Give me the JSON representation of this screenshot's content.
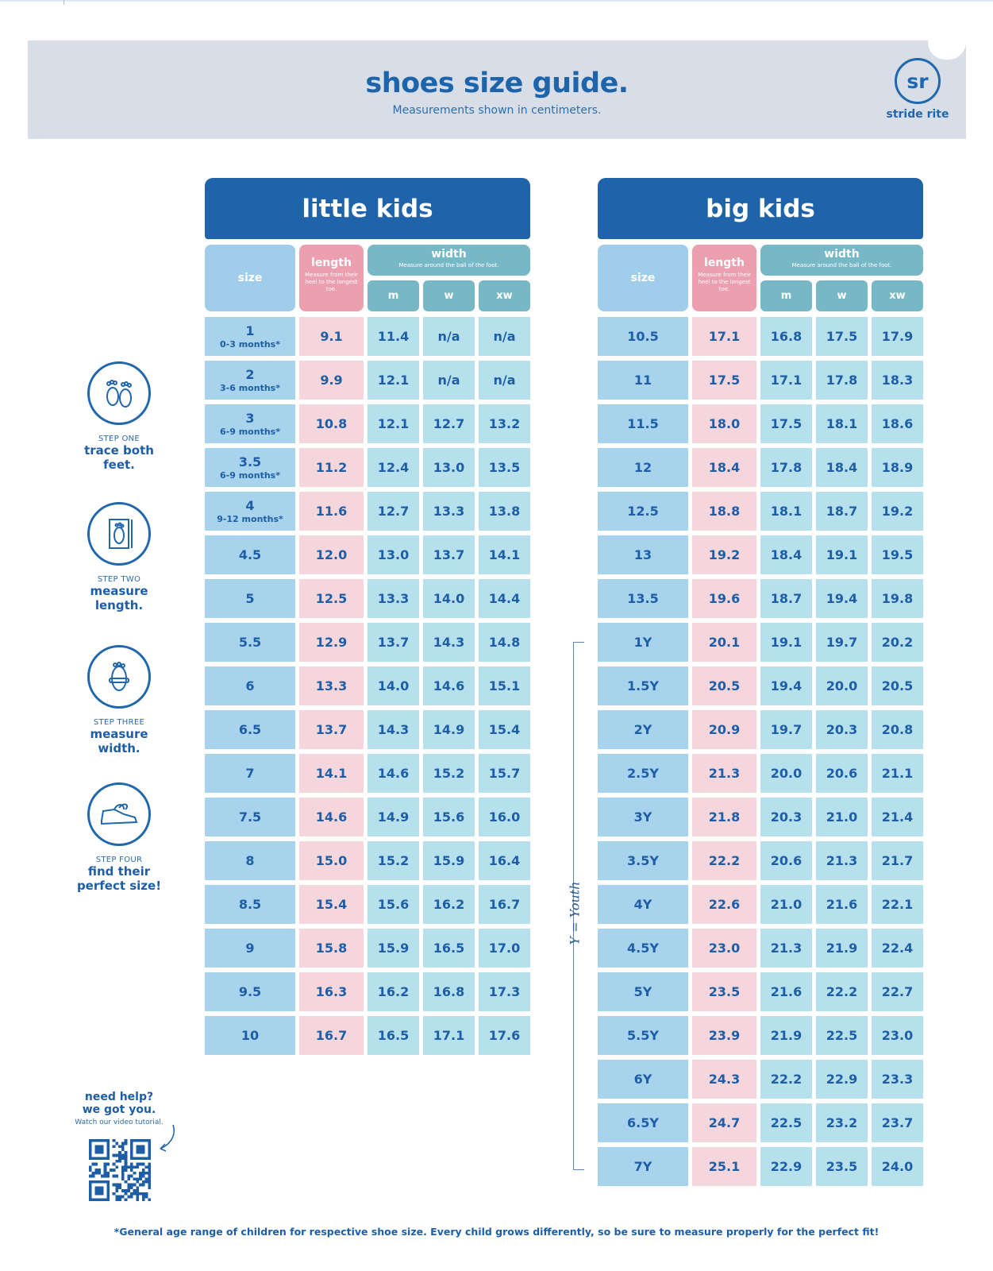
{
  "header": {
    "title": "shoes size guide.",
    "subtitle": "Measurements shown in centimeters.",
    "logo_mark": "sr",
    "brand": "stride rite"
  },
  "columns": {
    "size": "size",
    "length": "length",
    "length_note": "Measure from their heel to the longest toe.",
    "width": "width",
    "width_note": "Measure around the ball of the foot.",
    "m": "m",
    "w": "w",
    "xw": "xw"
  },
  "little_kids": {
    "title": "little kids",
    "rows": [
      {
        "size": "1",
        "age": "0-3 months*",
        "length": "9.1",
        "m": "11.4",
        "w": "n/a",
        "xw": "n/a"
      },
      {
        "size": "2",
        "age": "3-6 months*",
        "length": "9.9",
        "m": "12.1",
        "w": "n/a",
        "xw": "n/a"
      },
      {
        "size": "3",
        "age": "6-9 months*",
        "length": "10.8",
        "m": "12.1",
        "w": "12.7",
        "xw": "13.2"
      },
      {
        "size": "3.5",
        "age": "6-9 months*",
        "length": "11.2",
        "m": "12.4",
        "w": "13.0",
        "xw": "13.5"
      },
      {
        "size": "4",
        "age": "9-12 months*",
        "length": "11.6",
        "m": "12.7",
        "w": "13.3",
        "xw": "13.8"
      },
      {
        "size": "4.5",
        "age": "",
        "length": "12.0",
        "m": "13.0",
        "w": "13.7",
        "xw": "14.1"
      },
      {
        "size": "5",
        "age": "",
        "length": "12.5",
        "m": "13.3",
        "w": "14.0",
        "xw": "14.4"
      },
      {
        "size": "5.5",
        "age": "",
        "length": "12.9",
        "m": "13.7",
        "w": "14.3",
        "xw": "14.8"
      },
      {
        "size": "6",
        "age": "",
        "length": "13.3",
        "m": "14.0",
        "w": "14.6",
        "xw": "15.1"
      },
      {
        "size": "6.5",
        "age": "",
        "length": "13.7",
        "m": "14.3",
        "w": "14.9",
        "xw": "15.4"
      },
      {
        "size": "7",
        "age": "",
        "length": "14.1",
        "m": "14.6",
        "w": "15.2",
        "xw": "15.7"
      },
      {
        "size": "7.5",
        "age": "",
        "length": "14.6",
        "m": "14.9",
        "w": "15.6",
        "xw": "16.0"
      },
      {
        "size": "8",
        "age": "",
        "length": "15.0",
        "m": "15.2",
        "w": "15.9",
        "xw": "16.4"
      },
      {
        "size": "8.5",
        "age": "",
        "length": "15.4",
        "m": "15.6",
        "w": "16.2",
        "xw": "16.7"
      },
      {
        "size": "9",
        "age": "",
        "length": "15.8",
        "m": "15.9",
        "w": "16.5",
        "xw": "17.0"
      },
      {
        "size": "9.5",
        "age": "",
        "length": "16.3",
        "m": "16.2",
        "w": "16.8",
        "xw": "17.3"
      },
      {
        "size": "10",
        "age": "",
        "length": "16.7",
        "m": "16.5",
        "w": "17.1",
        "xw": "17.6"
      }
    ]
  },
  "big_kids": {
    "title": "big kids",
    "rows": [
      {
        "size": "10.5",
        "length": "17.1",
        "m": "16.8",
        "w": "17.5",
        "xw": "17.9"
      },
      {
        "size": "11",
        "length": "17.5",
        "m": "17.1",
        "w": "17.8",
        "xw": "18.3"
      },
      {
        "size": "11.5",
        "length": "18.0",
        "m": "17.5",
        "w": "18.1",
        "xw": "18.6"
      },
      {
        "size": "12",
        "length": "18.4",
        "m": "17.8",
        "w": "18.4",
        "xw": "18.9"
      },
      {
        "size": "12.5",
        "length": "18.8",
        "m": "18.1",
        "w": "18.7",
        "xw": "19.2"
      },
      {
        "size": "13",
        "length": "19.2",
        "m": "18.4",
        "w": "19.1",
        "xw": "19.5"
      },
      {
        "size": "13.5",
        "length": "19.6",
        "m": "18.7",
        "w": "19.4",
        "xw": "19.8"
      },
      {
        "size": "1Y",
        "length": "20.1",
        "m": "19.1",
        "w": "19.7",
        "xw": "20.2"
      },
      {
        "size": "1.5Y",
        "length": "20.5",
        "m": "19.4",
        "w": "20.0",
        "xw": "20.5"
      },
      {
        "size": "2Y",
        "length": "20.9",
        "m": "19.7",
        "w": "20.3",
        "xw": "20.8"
      },
      {
        "size": "2.5Y",
        "length": "21.3",
        "m": "20.0",
        "w": "20.6",
        "xw": "21.1"
      },
      {
        "size": "3Y",
        "length": "21.8",
        "m": "20.3",
        "w": "21.0",
        "xw": "21.4"
      },
      {
        "size": "3.5Y",
        "length": "22.2",
        "m": "20.6",
        "w": "21.3",
        "xw": "21.7"
      },
      {
        "size": "4Y",
        "length": "22.6",
        "m": "21.0",
        "w": "21.6",
        "xw": "22.1"
      },
      {
        "size": "4.5Y",
        "length": "23.0",
        "m": "21.3",
        "w": "21.9",
        "xw": "22.4"
      },
      {
        "size": "5Y",
        "length": "23.5",
        "m": "21.6",
        "w": "22.2",
        "xw": "22.7"
      },
      {
        "size": "5.5Y",
        "length": "23.9",
        "m": "21.9",
        "w": "22.5",
        "xw": "23.0"
      },
      {
        "size": "6Y",
        "length": "24.3",
        "m": "22.2",
        "w": "22.9",
        "xw": "23.3"
      },
      {
        "size": "6.5Y",
        "length": "24.7",
        "m": "22.5",
        "w": "23.2",
        "xw": "23.7"
      },
      {
        "size": "7Y",
        "length": "25.1",
        "m": "22.9",
        "w": "23.5",
        "xw": "24.0"
      }
    ],
    "youth_note": "Y = Youth"
  },
  "steps": [
    {
      "num": "STEP ONE",
      "text": "trace both feet.",
      "icon": "feet-icon"
    },
    {
      "num": "STEP TWO",
      "text": "measure length.",
      "icon": "foot-length-icon"
    },
    {
      "num": "STEP THREE",
      "text": "measure width.",
      "icon": "foot-width-icon"
    },
    {
      "num": "STEP FOUR",
      "text": "find their perfect size!",
      "icon": "sneaker-icon"
    }
  ],
  "help": {
    "line1": "need help?",
    "line2": "we got you.",
    "line3": "Watch our video tutorial."
  },
  "footnote": "*General age range of children for respective shoe size. Every child grows differently, so be sure to measure properly for the perfect fit!",
  "colors": {
    "brand_blue": "#1f64ab",
    "size_cell": "#a8d3ec",
    "length_cell": "#f4d6dc",
    "width_cell": "#b6e0ec",
    "width_header": "#77b8c6",
    "length_header": "#ec9fae"
  }
}
